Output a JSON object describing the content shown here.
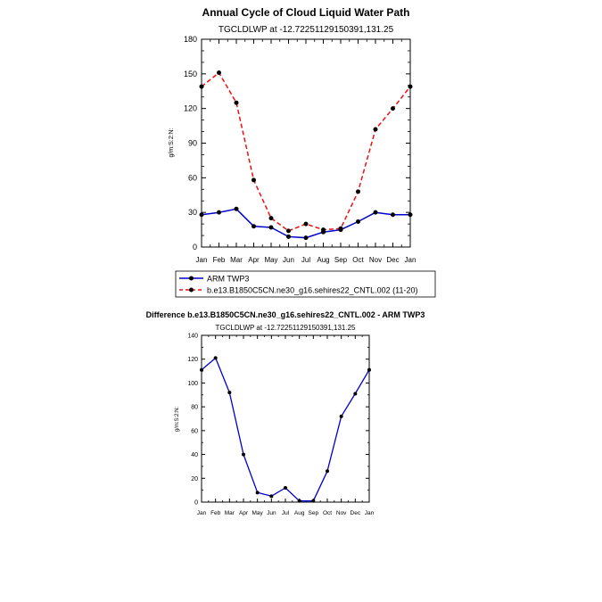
{
  "chart_data": [
    {
      "type": "line",
      "title": "Annual Cycle of Cloud Liquid Water Path",
      "subtitle": "TGCLDLWP at -12.72251129150391,131.25",
      "xlabel": "",
      "ylabel": "g/m:S:2:N:",
      "categories": [
        "Jan",
        "Feb",
        "Mar",
        "Apr",
        "May",
        "Jun",
        "Jul",
        "Aug",
        "Sep",
        "Oct",
        "Nov",
        "Dec",
        "Jan"
      ],
      "yticks": [
        "0",
        "30",
        "60",
        "90",
        "120",
        "150",
        "180"
      ],
      "ylim": [
        0,
        180
      ],
      "series": [
        {
          "name": "ARM TWP3",
          "color": "#0000cc",
          "dashed": false,
          "values": [
            28,
            30,
            33,
            18,
            17,
            9,
            8,
            13,
            15,
            22,
            30,
            28,
            28
          ]
        },
        {
          "name": "b.e13.B1850C5CN.ne30_g16.sehires22_CNTL.002 (11-20)",
          "color": "#ee1111",
          "dashed": true,
          "values": [
            139,
            151,
            125,
            58,
            25,
            14,
            20,
            15,
            16,
            48,
            102,
            120,
            139
          ]
        }
      ]
    },
    {
      "type": "line",
      "title": "Difference b.e13.B1850C5CN.ne30_g16.sehires22_CNTL.002 - ARM TWP3",
      "subtitle": "TGCLDLWP at -12.72251129150391,131.25",
      "xlabel": "",
      "ylabel": "g/m:S:2:N:",
      "categories": [
        "Jan",
        "Feb",
        "Mar",
        "Apr",
        "May",
        "Jun",
        "Jul",
        "Aug",
        "Sep",
        "Oct",
        "Nov",
        "Dec",
        "Jan"
      ],
      "yticks": [
        "0",
        "20",
        "40",
        "60",
        "80",
        "100",
        "120",
        "140"
      ],
      "ylim": [
        0,
        140
      ],
      "series": [
        {
          "name": "difference",
          "color": "#0000cc",
          "dashed": false,
          "values": [
            111,
            121,
            92,
            40,
            8,
            5,
            12,
            1,
            1,
            26,
            72,
            91,
            111
          ]
        }
      ]
    }
  ]
}
